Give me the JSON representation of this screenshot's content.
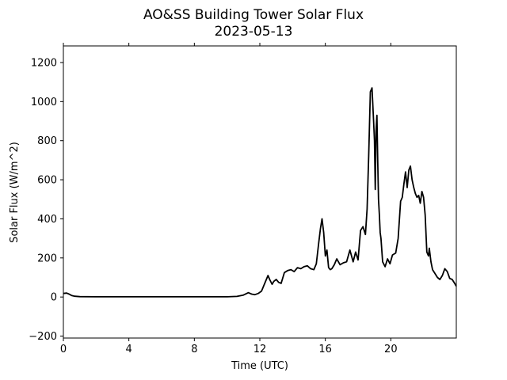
{
  "chart_data": {
    "type": "line",
    "title": "AO&SS Building Tower Solar Flux",
    "subtitle": "2023-05-13",
    "xlabel": "Time (UTC)",
    "ylabel": "Solar Flux (W/m^2)",
    "xlim": [
      0,
      24
    ],
    "ylim": [
      -210,
      1285
    ],
    "xticks": [
      0,
      4,
      8,
      12,
      16,
      20
    ],
    "yticks": [
      -200,
      0,
      200,
      400,
      600,
      800,
      1000,
      1200
    ],
    "grid": false,
    "legend": "none",
    "series": [
      {
        "color": "#000000",
        "x": [
          0.0,
          0.2,
          0.35,
          0.5,
          0.7,
          1.0,
          2.0,
          4.0,
          6.0,
          8.0,
          10.0,
          10.6,
          11.0,
          11.3,
          11.5,
          11.7,
          11.9,
          12.1,
          12.3,
          12.5,
          12.6,
          12.75,
          12.85,
          13.0,
          13.15,
          13.3,
          13.5,
          13.7,
          13.9,
          14.1,
          14.3,
          14.5,
          14.7,
          14.9,
          15.1,
          15.3,
          15.45,
          15.6,
          15.7,
          15.8,
          15.9,
          16.0,
          16.1,
          16.2,
          16.3,
          16.4,
          16.55,
          16.7,
          16.9,
          17.1,
          17.3,
          17.5,
          17.7,
          17.85,
          18.0,
          18.15,
          18.3,
          18.45,
          18.55,
          18.65,
          18.75,
          18.85,
          18.95,
          19.0,
          19.05,
          19.1,
          19.15,
          19.2,
          19.25,
          19.3,
          19.35,
          19.4,
          19.5,
          19.65,
          19.8,
          19.95,
          20.1,
          20.3,
          20.45,
          20.6,
          20.7,
          20.8,
          20.9,
          21.0,
          21.1,
          21.2,
          21.3,
          21.4,
          21.5,
          21.6,
          21.7,
          21.8,
          21.9,
          22.0,
          22.1,
          22.2,
          22.3,
          22.35,
          22.45,
          22.55,
          22.7,
          22.85,
          23.0,
          23.15,
          23.3,
          23.45,
          23.6,
          23.75,
          23.9,
          24.0
        ],
        "y": [
          18,
          20,
          15,
          8,
          4,
          2,
          1,
          1,
          1,
          1,
          1,
          3,
          10,
          22,
          15,
          12,
          18,
          30,
          70,
          110,
          90,
          65,
          80,
          90,
          75,
          70,
          125,
          135,
          140,
          130,
          150,
          145,
          155,
          160,
          145,
          140,
          170,
          280,
          350,
          400,
          330,
          210,
          240,
          150,
          140,
          145,
          165,
          195,
          165,
          175,
          180,
          240,
          180,
          230,
          190,
          340,
          360,
          320,
          450,
          720,
          1050,
          1070,
          900,
          800,
          550,
          850,
          930,
          700,
          500,
          420,
          330,
          300,
          180,
          155,
          195,
          170,
          215,
          225,
          300,
          490,
          510,
          580,
          640,
          560,
          650,
          670,
          600,
          560,
          530,
          510,
          520,
          480,
          540,
          510,
          420,
          230,
          210,
          250,
          180,
          140,
          120,
          100,
          90,
          110,
          145,
          130,
          95,
          90,
          70,
          55
        ]
      }
    ]
  }
}
